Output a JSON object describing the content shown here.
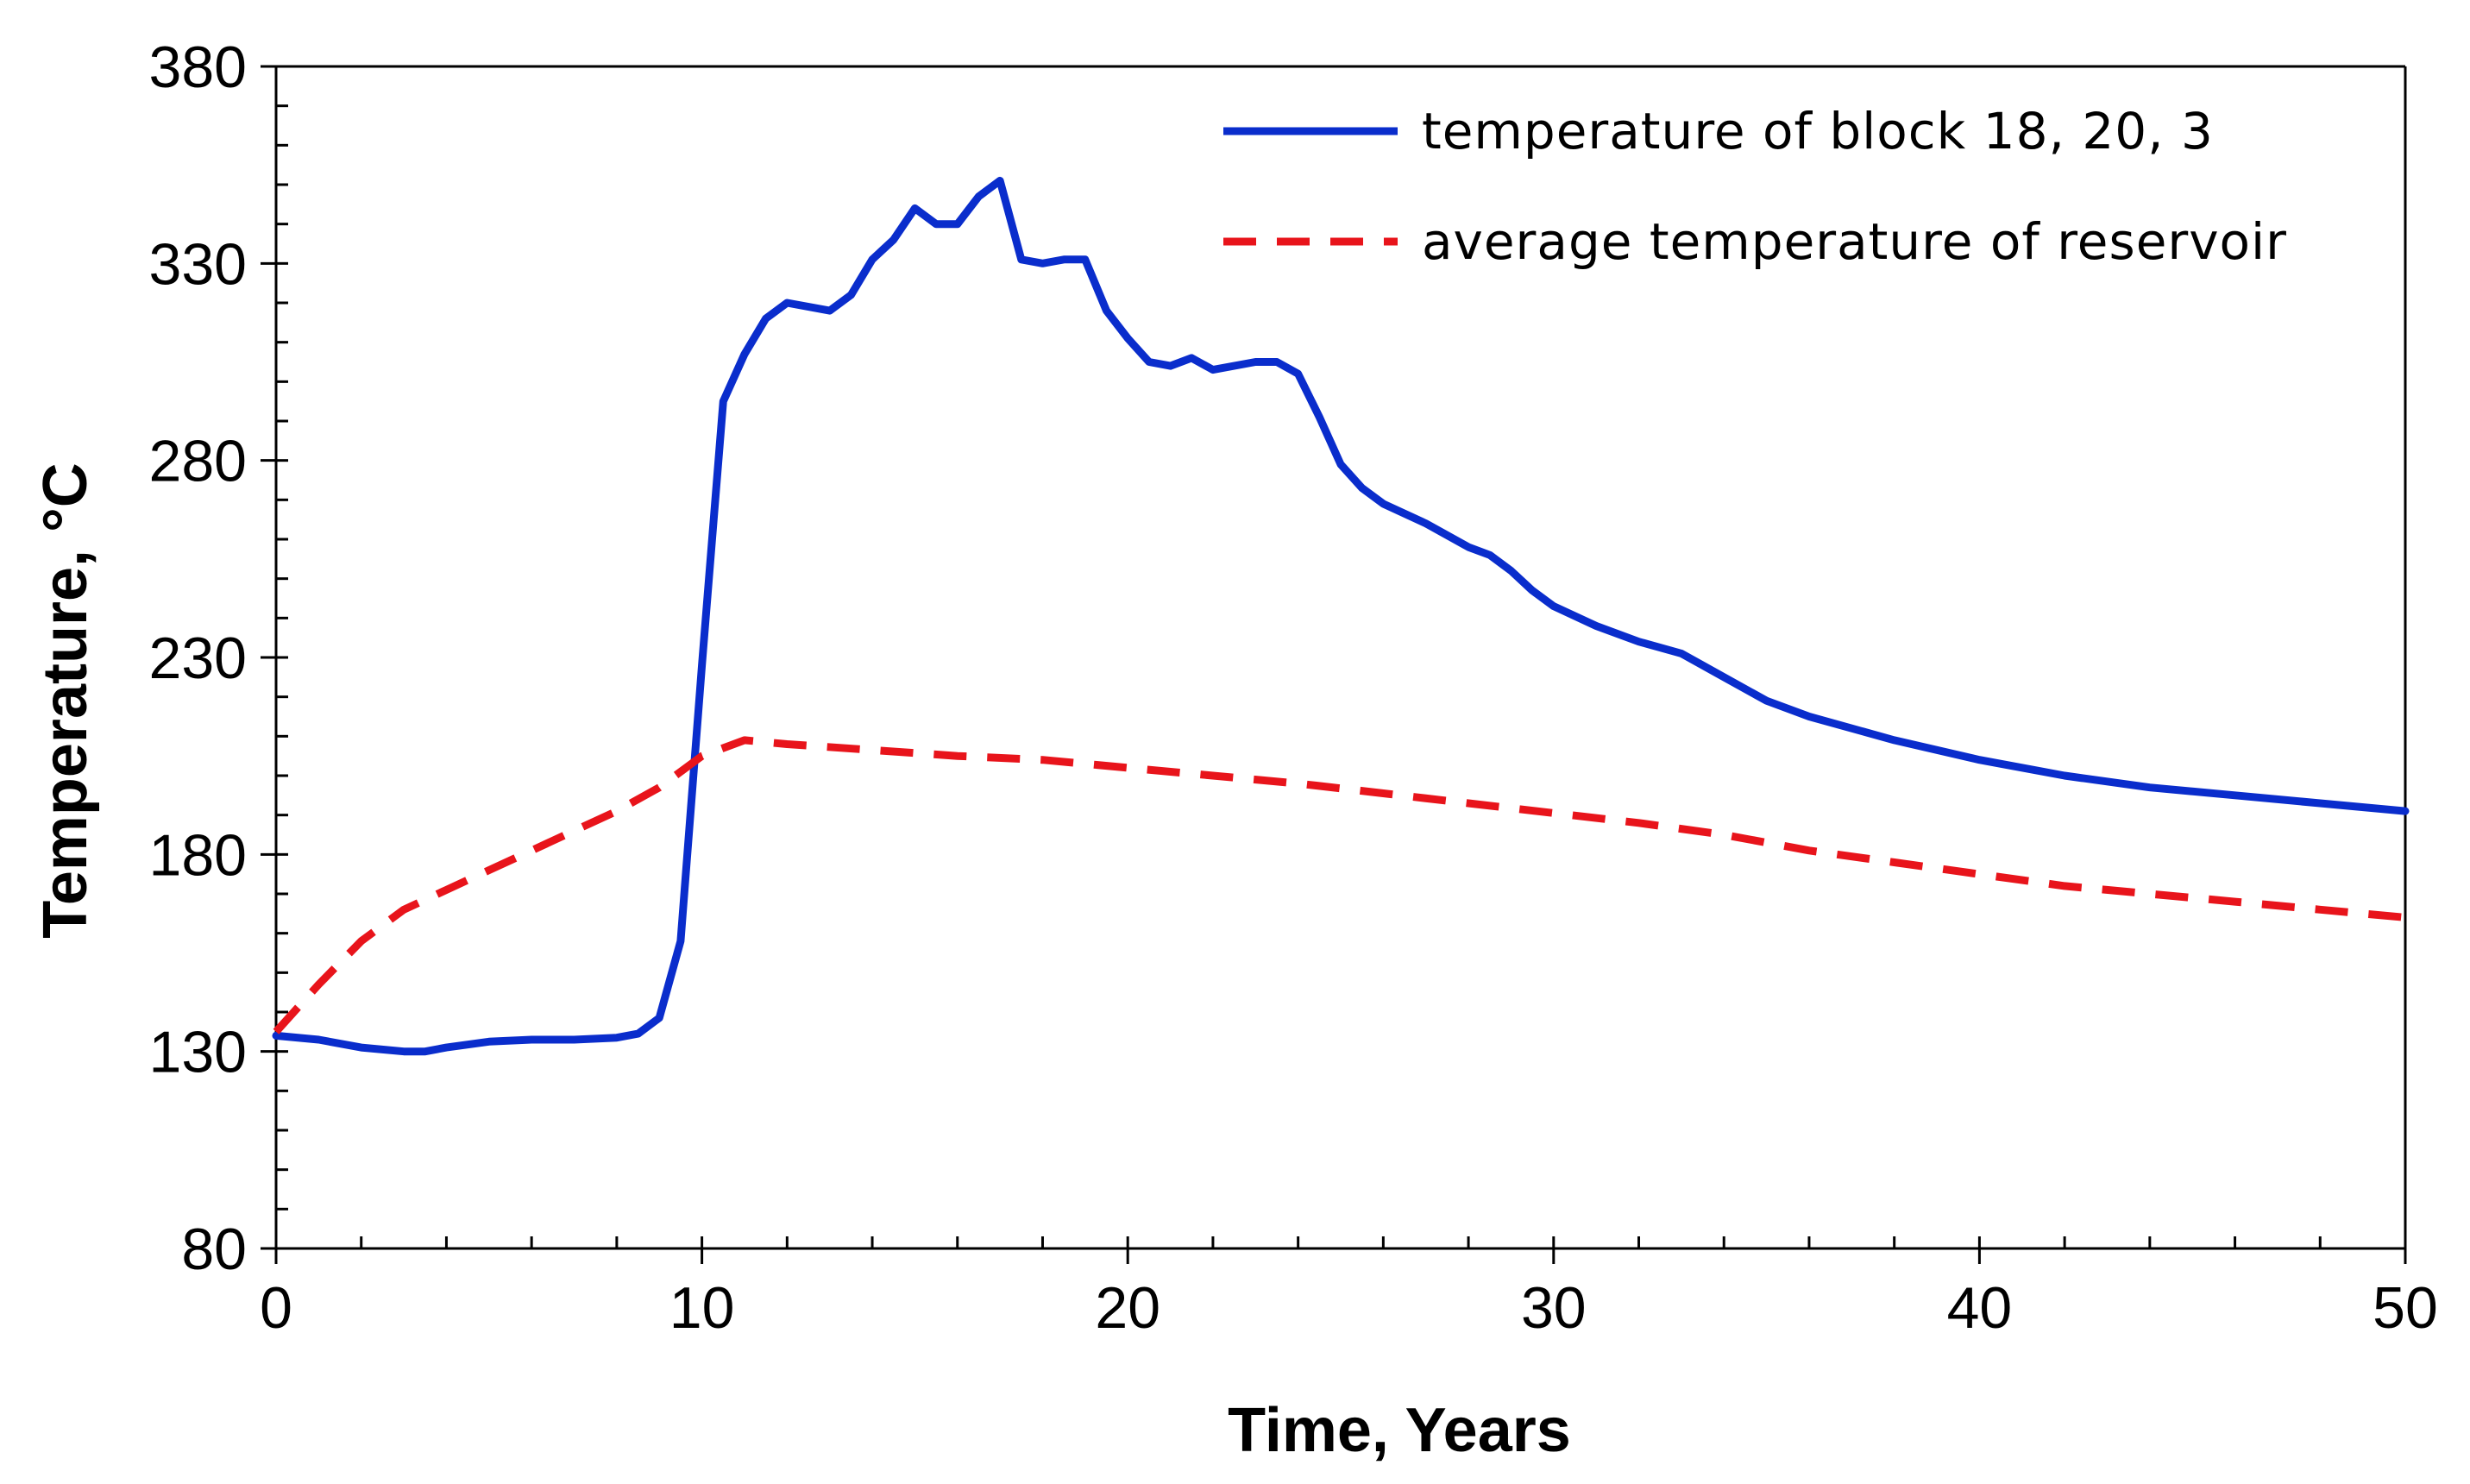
{
  "chart_data": {
    "type": "line",
    "title": "",
    "xlabel": "Time, Years",
    "ylabel": "Temperature, °C",
    "xlim": [
      0,
      50
    ],
    "ylim": [
      80,
      380
    ],
    "xticks": [
      0,
      10,
      20,
      30,
      40,
      50
    ],
    "yticks": [
      80,
      130,
      180,
      230,
      280,
      330,
      380
    ],
    "grid": false,
    "legend_position": "top-right",
    "series": [
      {
        "name": "temperature of block 18, 20, 3",
        "color": "#0a2dcc",
        "style": "solid",
        "x": [
          0,
          1,
          2,
          3,
          3.5,
          4,
          5,
          6,
          7,
          8,
          8.5,
          9,
          9.5,
          10,
          10.5,
          11,
          11.5,
          12,
          13,
          13.5,
          14,
          14.5,
          15,
          15.5,
          16,
          16.5,
          17,
          17.5,
          18,
          18.5,
          19,
          19.5,
          20,
          20.5,
          21,
          21.5,
          22,
          23,
          23.5,
          24,
          24.5,
          25,
          25.5,
          26,
          27,
          28,
          28.5,
          29,
          29.5,
          30,
          31,
          32,
          33,
          34,
          35,
          36,
          37,
          38,
          40,
          42,
          44,
          46,
          48,
          50
        ],
        "y": [
          134,
          133,
          131,
          130,
          130,
          131,
          132.5,
          133,
          133,
          133.5,
          134.5,
          138.5,
          158,
          228,
          295,
          307,
          316,
          320,
          318,
          322,
          331,
          336,
          344,
          340,
          340,
          347,
          351,
          331,
          330,
          331,
          331,
          318,
          311,
          305,
          304,
          306,
          303,
          305,
          305,
          302,
          291,
          279,
          273,
          269,
          264,
          258,
          256,
          252,
          247,
          243,
          238,
          234,
          231,
          225,
          219,
          215,
          212,
          209,
          204,
          200,
          197,
          195,
          193,
          191
        ]
      },
      {
        "name": "average temperature of reservoir",
        "color": "#e8141b",
        "style": "dashed",
        "x": [
          0,
          1,
          2,
          3,
          4,
          5,
          6,
          7,
          8,
          9,
          10,
          11,
          12,
          14,
          16,
          18,
          20,
          22,
          24,
          26,
          28,
          30,
          32,
          34,
          36,
          38,
          40,
          42,
          44,
          46,
          48,
          50
        ],
        "y": [
          135,
          147,
          158,
          166,
          171,
          176,
          181,
          186,
          191,
          197,
          205,
          209,
          208,
          206.5,
          205,
          204,
          202,
          200,
          198,
          195.5,
          193,
          190.5,
          188,
          185,
          181,
          178,
          175,
          172,
          170,
          168,
          166,
          164
        ]
      }
    ]
  }
}
